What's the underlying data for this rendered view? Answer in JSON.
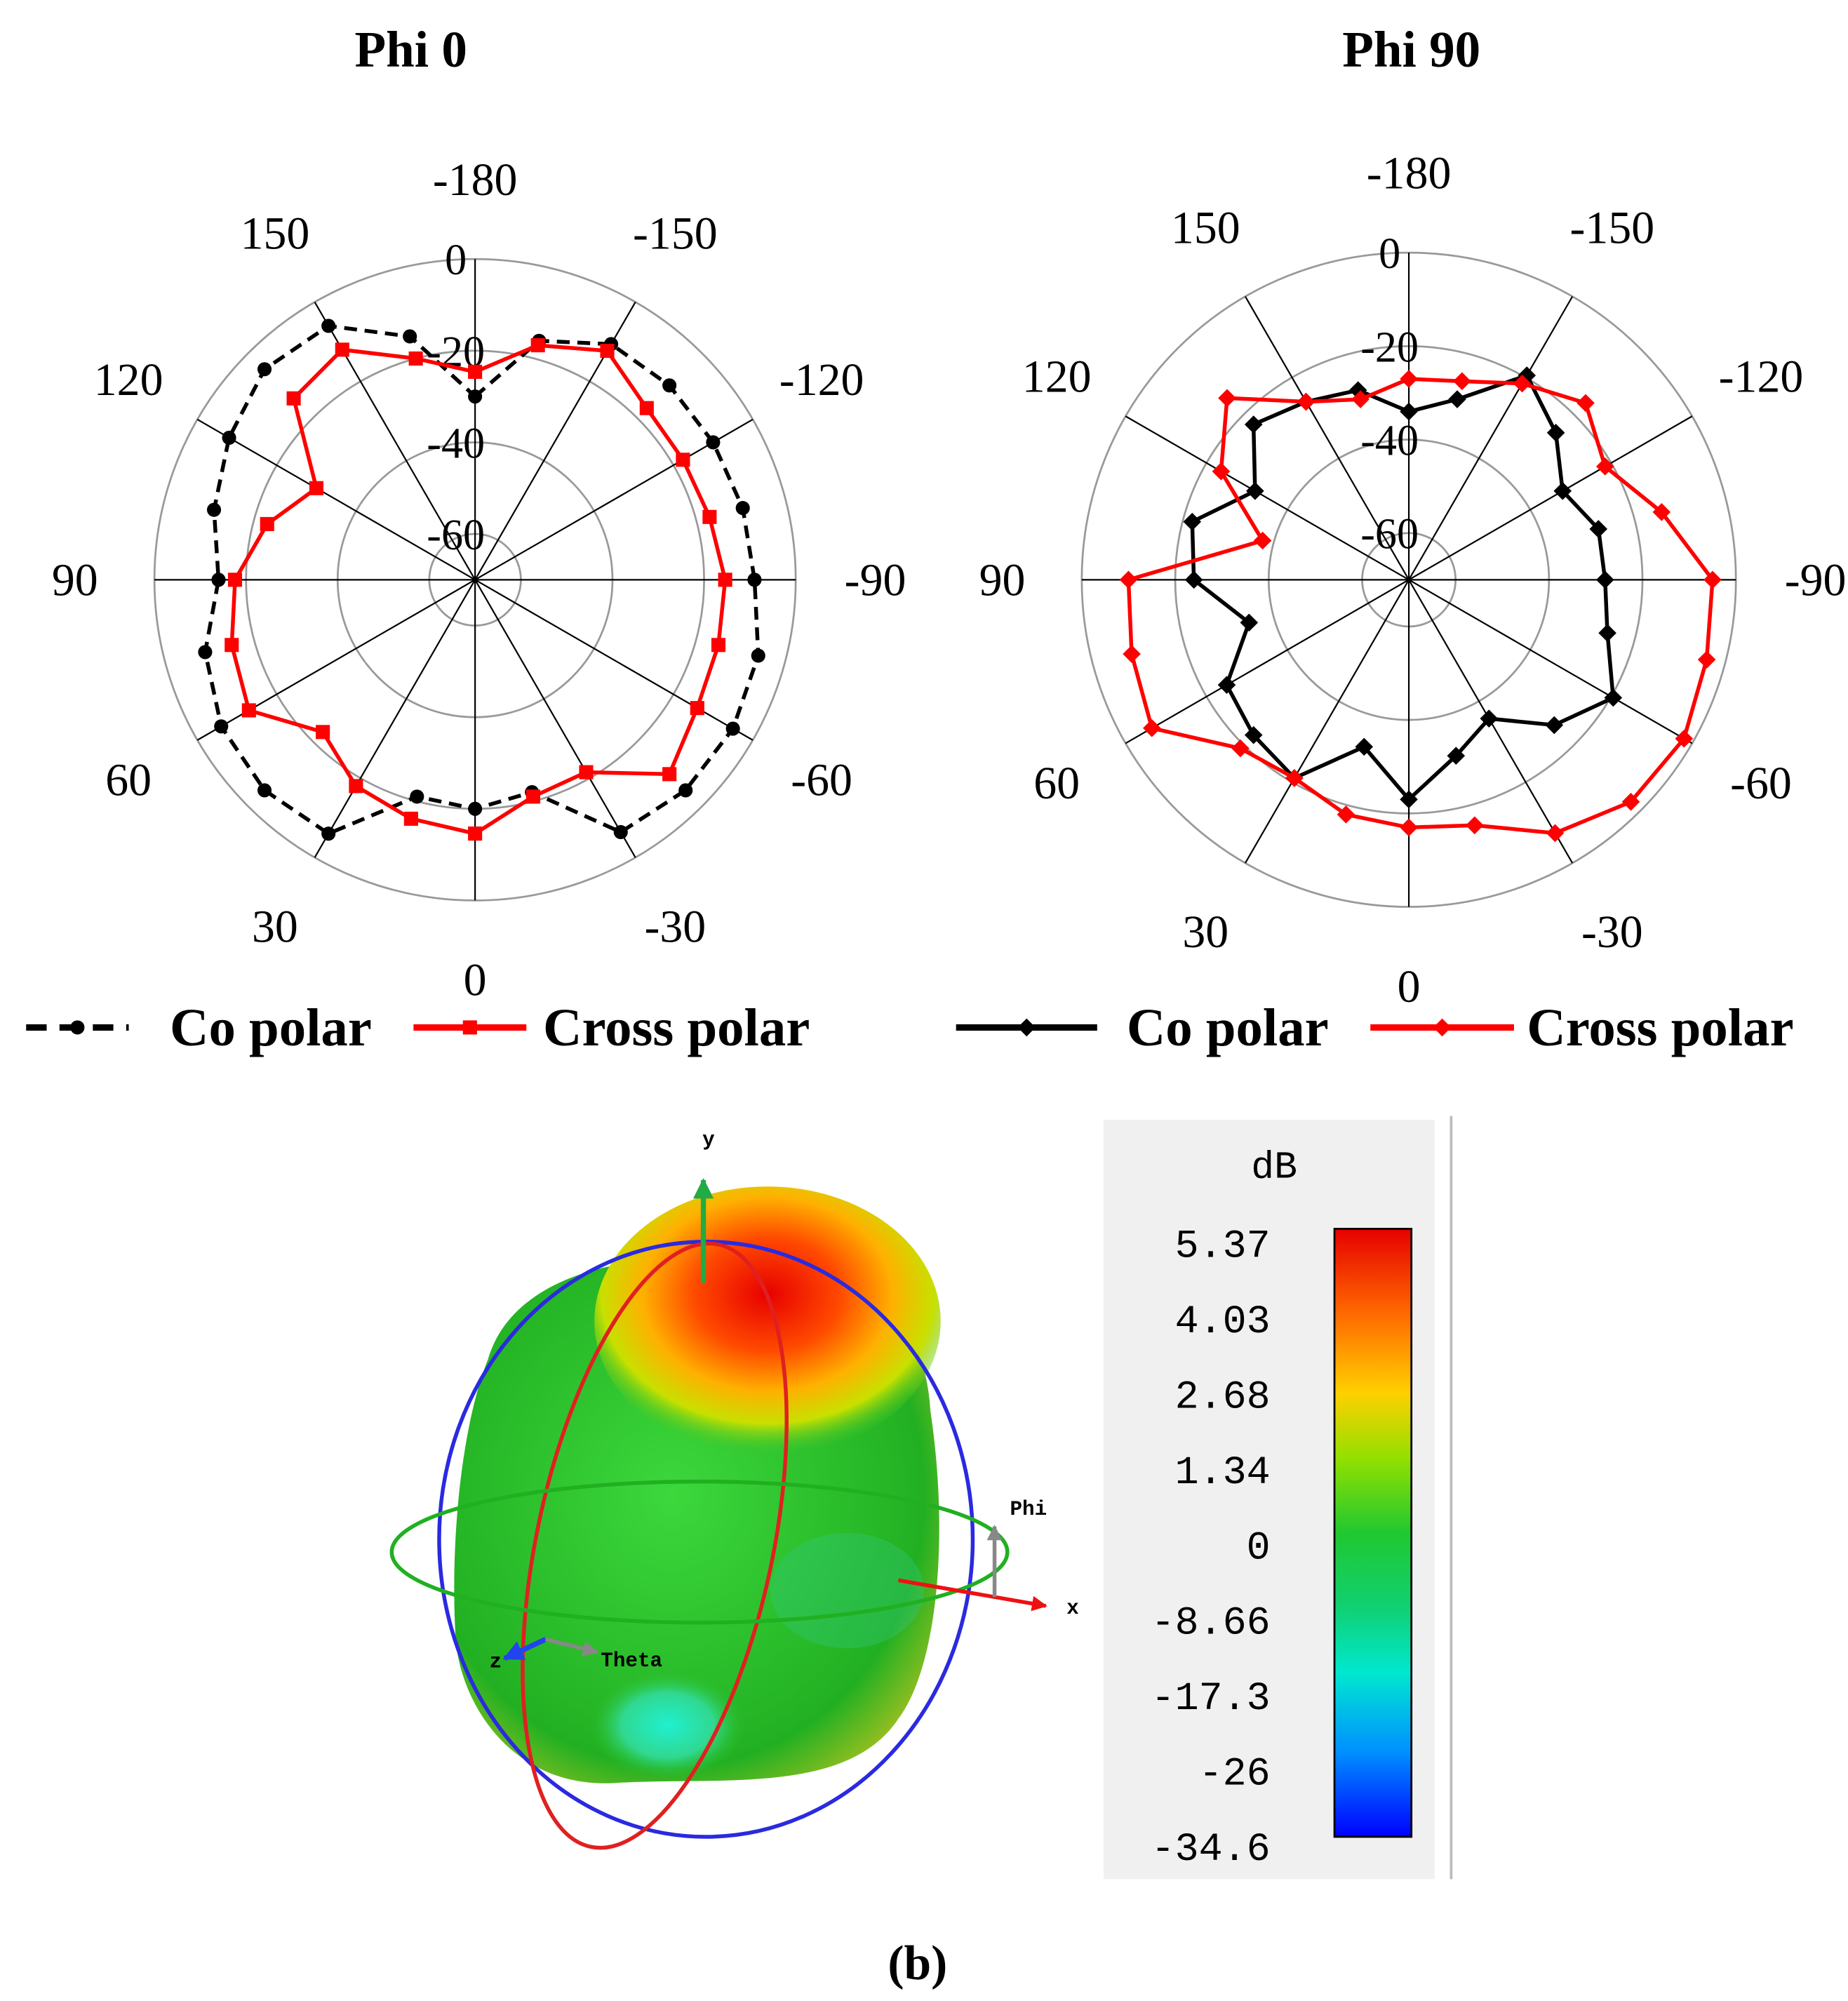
{
  "chart_data": [
    {
      "type": "polar",
      "title": "Phi 0",
      "theta": [
        -180,
        -165,
        -150,
        -135,
        -120,
        -105,
        -90,
        -75,
        -60,
        -45,
        -30,
        -15,
        0,
        15,
        30,
        45,
        60,
        75,
        90,
        105,
        120,
        135,
        150,
        165
      ],
      "thetaticks": [
        0,
        30,
        60,
        90,
        120,
        150,
        -180,
        -150,
        -120,
        -90,
        -60,
        -30
      ],
      "rlim": [
        -70,
        0
      ],
      "rticks": [
        0,
        -20,
        -40,
        -60
      ],
      "series": [
        {
          "name": "Co polar",
          "color": "#000000",
          "marker": "circle",
          "dashed": true,
          "values": [
            -30,
            -16,
            -10.6,
            -10,
            -10,
            -9.5,
            -9,
            -6,
            -5,
            -5,
            -6.4,
            -22,
            -20,
            -21,
            -6,
            -5,
            -6,
            -9,
            -14,
            -11,
            -8,
            -5,
            -6,
            -15
          ]
        },
        {
          "name": "Cross polar",
          "color": "#ff0000",
          "marker": "square",
          "dashed": false,
          "values": [
            -24.6,
            -17,
            -12.3,
            -17,
            -17.6,
            -17,
            -15.4,
            -15,
            -14,
            -10,
            -21.5,
            -21,
            -14.6,
            -16,
            -18,
            -23,
            -13,
            -15,
            -17.6,
            -23,
            -30,
            -14,
            -12,
            -20
          ]
        }
      ]
    },
    {
      "type": "polar",
      "title": "Phi 90",
      "theta": [
        -180,
        -165,
        -150,
        -135,
        -120,
        -105,
        -90,
        -75,
        -60,
        -45,
        -30,
        -15,
        0,
        15,
        30,
        45,
        60,
        75,
        90,
        105,
        120,
        135,
        150,
        165
      ],
      "thetaticks": [
        0,
        30,
        60,
        90,
        120,
        150,
        -180,
        -150,
        -120,
        -90,
        -60,
        -30
      ],
      "rlim": [
        -70,
        0
      ],
      "rticks": [
        0,
        -20,
        -40,
        -60
      ],
      "series": [
        {
          "name": "Co polar",
          "color": "#000000",
          "marker": "diamond",
          "dashed": false,
          "values": [
            -34,
            -30,
            -19.5,
            -25.5,
            -32,
            -28,
            -28,
            -26,
            -19.5,
            -26,
            -35.7,
            -31,
            -23,
            -33,
            -21,
            -23,
            -25,
            -34.6,
            -24,
            -22,
            -32,
            -23,
            -26,
            -28
          ]
        },
        {
          "name": "Cross polar",
          "color": "#ff0000",
          "marker": "diamond",
          "dashed": false,
          "values": [
            -27,
            -26,
            -21.5,
            -16.5,
            -21.5,
            -14,
            -5,
            -4,
            -2,
            -2.8,
            -7.4,
            -15.6,
            -17,
            -18,
            -21,
            -19,
            -6.5,
            -8.6,
            -10,
            -37.6,
            -23.6,
            -15,
            -26,
            -30
          ]
        }
      ]
    }
  ],
  "view3d": {
    "labels": [
      "y",
      "x",
      "z",
      "Phi",
      "Theta"
    ]
  },
  "colorbar": {
    "unit": "dB",
    "labels": [
      5.37,
      4.03,
      2.68,
      1.34,
      0,
      -8.66,
      -17.3,
      -26,
      -34.6
    ]
  },
  "caption": "(b)"
}
